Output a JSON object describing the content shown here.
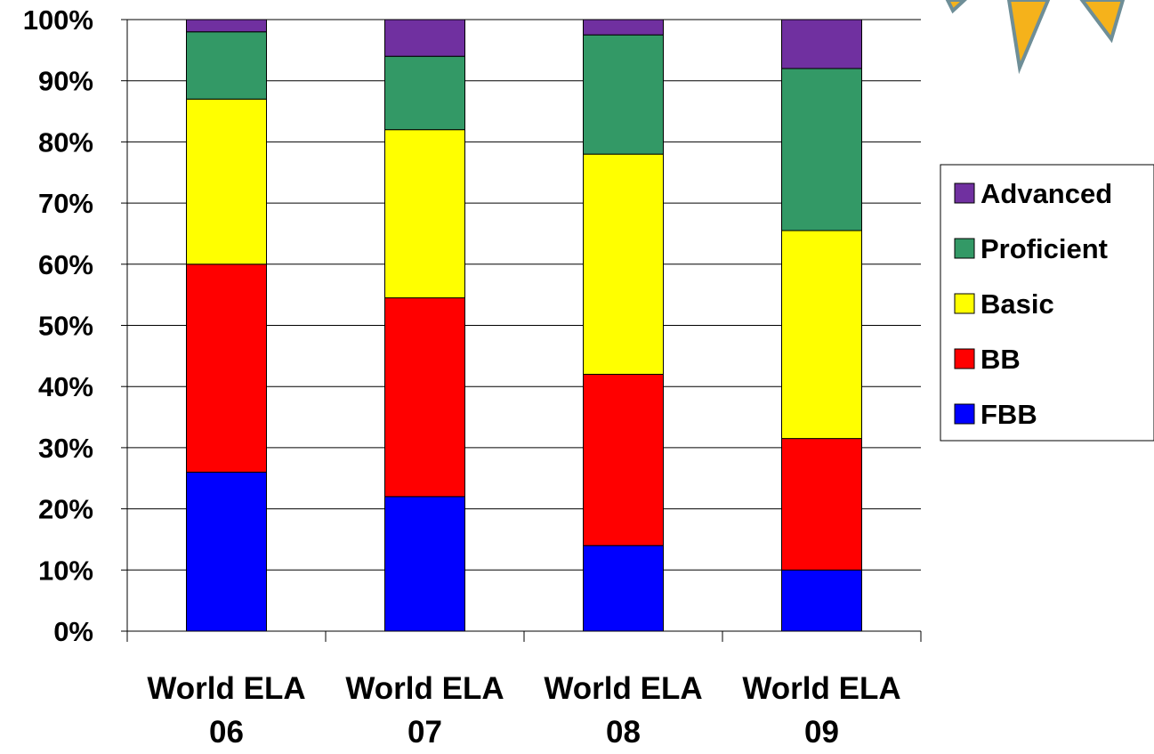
{
  "chart_data": {
    "type": "bar",
    "stacked": true,
    "percent": true,
    "categories": [
      [
        "World ELA",
        "06"
      ],
      [
        "World ELA",
        "07"
      ],
      [
        "World ELA",
        "08"
      ],
      [
        "World ELA",
        "09"
      ]
    ],
    "series": [
      {
        "name": "FBB",
        "color": "#0000FF",
        "values": [
          26,
          22,
          14,
          10
        ]
      },
      {
        "name": "BB",
        "color": "#FF0000",
        "values": [
          34,
          32.5,
          28,
          21.5
        ]
      },
      {
        "name": "Basic",
        "color": "#FFFF00",
        "values": [
          27,
          27.5,
          36,
          34
        ]
      },
      {
        "name": "Proficient",
        "color": "#339966",
        "values": [
          11,
          12,
          19.5,
          26.5
        ]
      },
      {
        "name": "Advanced",
        "color": "#7030A0",
        "values": [
          2,
          6,
          2.5,
          8
        ]
      }
    ],
    "y_ticks": [
      "0%",
      "10%",
      "20%",
      "30%",
      "40%",
      "50%",
      "60%",
      "70%",
      "80%",
      "90%",
      "100%"
    ],
    "ylim": [
      0,
      100
    ],
    "grid": true,
    "legend_position": "right",
    "legend_order": [
      "Advanced",
      "Proficient",
      "Basic",
      "BB",
      "FBB"
    ],
    "title": "",
    "xlabel": "",
    "ylabel": ""
  },
  "decoration": {
    "starburst_fill": "#F5B21B",
    "starburst_stroke": "#6E8E97"
  }
}
